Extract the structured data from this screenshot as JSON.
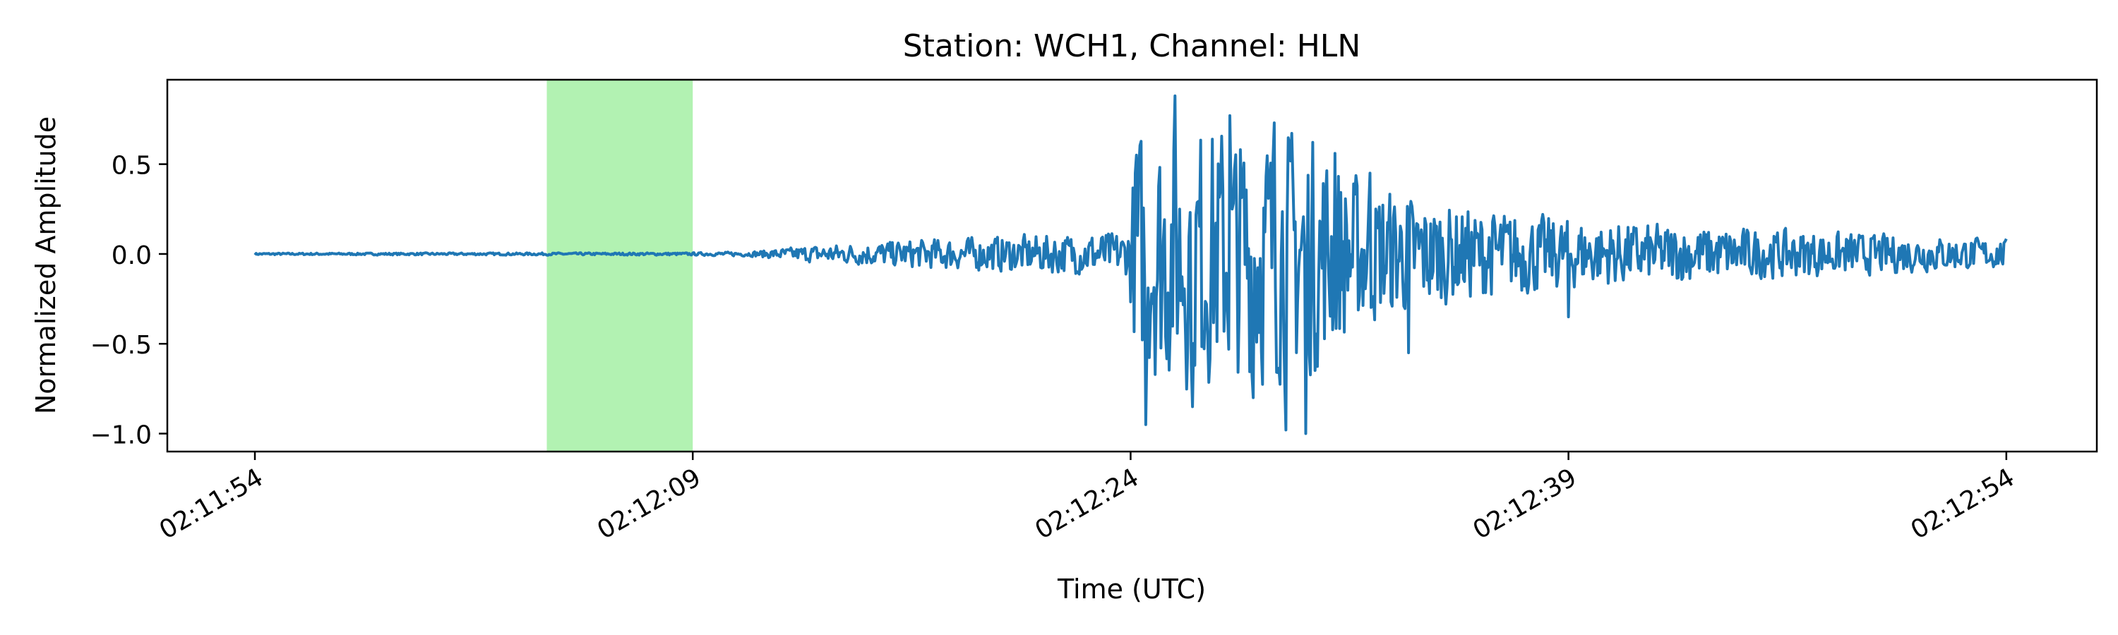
{
  "chart_data": {
    "type": "line",
    "title": "Station: WCH1, Channel: HLN",
    "xlabel": "Time (UTC)",
    "ylabel": "Normalized Amplitude",
    "x_range_seconds_of_day": [
      7911,
      7977.1
    ],
    "ylim": [
      -1.1,
      0.97
    ],
    "x_ticks": [
      {
        "t": 7914,
        "label": "02:11:54"
      },
      {
        "t": 7929,
        "label": "02:12:09"
      },
      {
        "t": 7944,
        "label": "02:12:24"
      },
      {
        "t": 7959,
        "label": "02:12:39"
      },
      {
        "t": 7974,
        "label": "02:12:54"
      }
    ],
    "y_ticks": [
      {
        "v": 0.5,
        "label": "0.5"
      },
      {
        "v": 0.0,
        "label": "0.0"
      },
      {
        "v": -0.5,
        "label": "−0.5"
      },
      {
        "v": -1.0,
        "label": "−1.0"
      }
    ],
    "highlight_window": {
      "start": 7924.0,
      "end": 7929.0,
      "color": "#b2f2b2"
    },
    "grid": false,
    "series": [
      {
        "color": "#1f77b4",
        "x_start": 7914,
        "x_end": 7974,
        "envelope": [
          {
            "t": 7914,
            "a": 0.006
          },
          {
            "t": 7929,
            "a": 0.008
          },
          {
            "t": 7931,
            "a": 0.015
          },
          {
            "t": 7933,
            "a": 0.05
          },
          {
            "t": 7937,
            "a": 0.09
          },
          {
            "t": 7941,
            "a": 0.12
          },
          {
            "t": 7943.9,
            "a": 0.14
          },
          {
            "t": 7944.2,
            "a": 0.75
          },
          {
            "t": 7946,
            "a": 0.82
          },
          {
            "t": 7950,
            "a": 0.78
          },
          {
            "t": 7952,
            "a": 0.45
          },
          {
            "t": 7955,
            "a": 0.3
          },
          {
            "t": 7960,
            "a": 0.2
          },
          {
            "t": 7966,
            "a": 0.15
          },
          {
            "t": 7974,
            "a": 0.09
          }
        ],
        "peaks": [
          {
            "t": 7944.2,
            "v": 0.55
          },
          {
            "t": 7944.5,
            "v": -0.95
          },
          {
            "t": 7945.5,
            "v": 0.88
          },
          {
            "t": 7946.1,
            "v": -0.85
          },
          {
            "t": 7947.4,
            "v": 0.77
          },
          {
            "t": 7948.2,
            "v": -0.8
          },
          {
            "t": 7948.9,
            "v": 0.73
          },
          {
            "t": 7949.3,
            "v": -0.98
          },
          {
            "t": 7950.0,
            "v": -1.0
          },
          {
            "t": 7951.0,
            "v": 0.56
          },
          {
            "t": 7952.2,
            "v": 0.45
          },
          {
            "t": 7953.5,
            "v": -0.55
          },
          {
            "t": 7959.0,
            "v": -0.35
          }
        ]
      }
    ]
  }
}
